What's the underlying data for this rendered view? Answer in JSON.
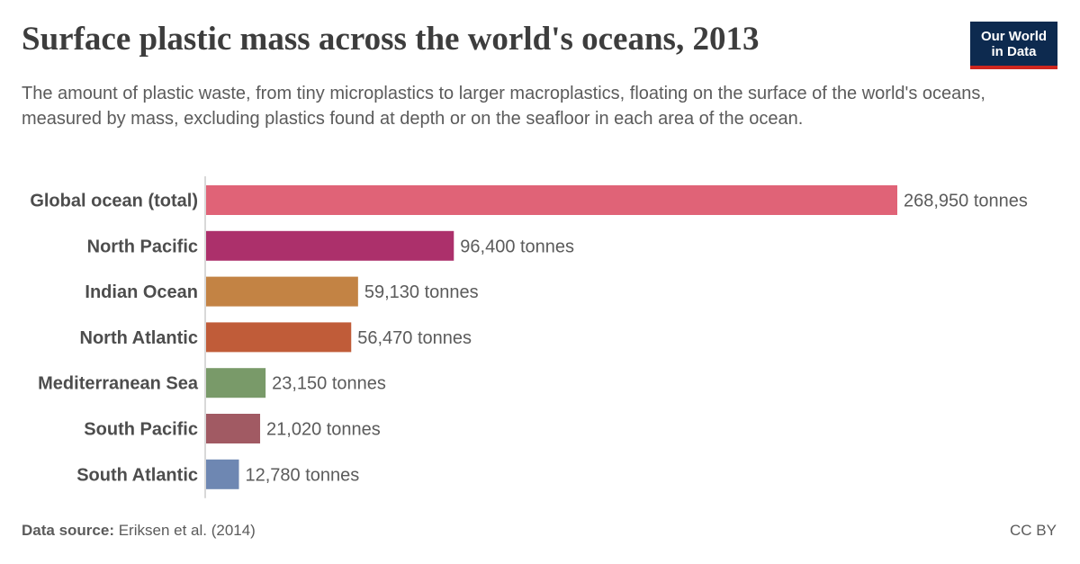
{
  "header": {
    "title": "Surface plastic mass across the world's oceans, 2013",
    "subtitle": "The amount of plastic waste, from tiny microplastics to larger macroplastics, floating on the surface of the world's oceans, measured by mass, excluding plastics found at depth or on the seafloor in each area of the ocean.",
    "logo_line1": "Our World",
    "logo_line2": "in Data"
  },
  "footer": {
    "source_label": "Data source:",
    "source_text": "Eriksen et al. (2014)",
    "license": "CC BY"
  },
  "chart_data": {
    "type": "bar",
    "orientation": "horizontal",
    "title": "Surface plastic mass across the world's oceans, 2013",
    "unit": "tonnes",
    "categories": [
      "Global ocean (total)",
      "North Pacific",
      "Indian Ocean",
      "North Atlantic",
      "Mediterranean Sea",
      "South Pacific",
      "South Atlantic"
    ],
    "values": [
      268950,
      96400,
      59130,
      56470,
      23150,
      21020,
      12780
    ],
    "value_labels": [
      "268,950 tonnes",
      "96,400 tonnes",
      "59,130 tonnes",
      "56,470 tonnes",
      "23,150 tonnes",
      "21,020 tonnes",
      "12,780 tonnes"
    ],
    "colors": [
      "#e06377",
      "#ac306b",
      "#c38344",
      "#c05c39",
      "#799a69",
      "#a15a63",
      "#6e87b2"
    ],
    "xlim": [
      0,
      268950
    ],
    "grid": false,
    "legend": "none"
  }
}
